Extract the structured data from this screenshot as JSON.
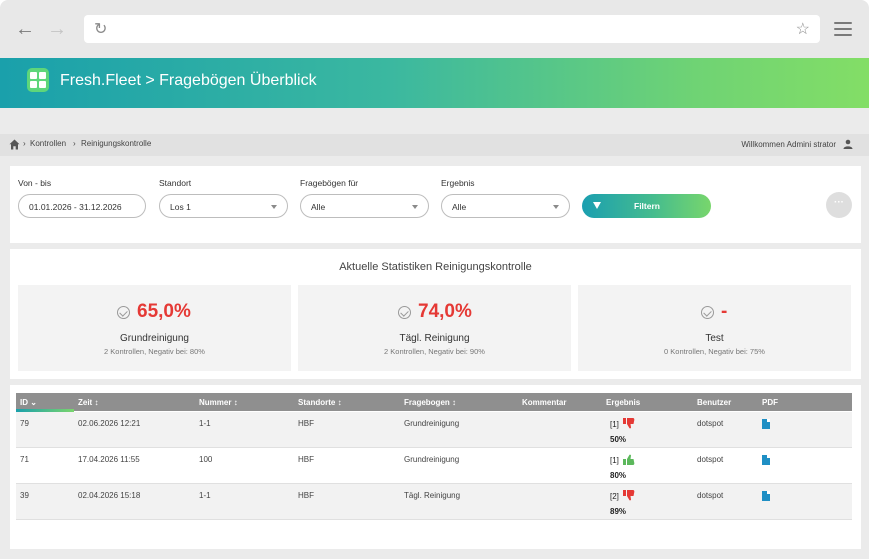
{
  "browser": {
    "back_icon": "arrow-left-icon",
    "forward_icon": "arrow-right-icon",
    "reload_icon": "reload-icon",
    "bookmark_icon": "star-icon",
    "menu_icon": "hamburger-icon"
  },
  "app": {
    "title": "Fresh.Fleet > Fragebögen Überblick",
    "gradient_start": "#1aa0ab",
    "gradient_end": "#83de66"
  },
  "breadcrumb": {
    "items": [
      "Kontrollen",
      "Reinigungskontrolle"
    ],
    "separator": "›",
    "welcome": "Willkommen Admini strator"
  },
  "filters": {
    "date": {
      "label": "Von - bis",
      "value": "01.01.2026 - 31.12.2026"
    },
    "location": {
      "label": "Standort",
      "value": "Los 1"
    },
    "questionnaire": {
      "label": "Fragebögen für",
      "value": "Alle"
    },
    "result": {
      "label": "Ergebnis",
      "value": "Alle"
    },
    "filter_button": "Filtern",
    "more_button": "···"
  },
  "stats": {
    "title": "Aktuelle Statistiken Reinigungskontrolle",
    "cards": [
      {
        "value": "65,0%",
        "name": "Grundreinigung",
        "sub": "2 Kontrollen, Negativ bei: 80%"
      },
      {
        "value": "74,0%",
        "name": "Tägl. Reinigung",
        "sub": "2 Kontrollen, Negativ bei: 90%"
      },
      {
        "value": "-",
        "name": "Test",
        "sub": "0 Kontrollen, Negativ bei: 75%"
      }
    ]
  },
  "table": {
    "columns": [
      "ID",
      "Zeit",
      "Nummer",
      "Standorte",
      "Fragebogen",
      "Kommentar",
      "Ergebnis",
      "Benutzer",
      "PDF"
    ],
    "rows": [
      {
        "id": "79",
        "zeit": "02.06.2026 12:21",
        "nummer": "1-1",
        "standort": "HBF",
        "fragebogen": "Grundreinigung",
        "kommentar": "",
        "ergebnis": "[1]",
        "thumb": "down",
        "prozent": "50%",
        "benutzer": "dotspot"
      },
      {
        "id": "71",
        "zeit": "17.04.2026 11:55",
        "nummer": "100",
        "standort": "HBF",
        "fragebogen": "Grundreinigung",
        "kommentar": "",
        "ergebnis": "[1]",
        "thumb": "up",
        "prozent": "80%",
        "benutzer": "dotspot"
      },
      {
        "id": "39",
        "zeit": "02.04.2026 15:18",
        "nummer": "1-1",
        "standort": "HBF",
        "fragebogen": "Tägl. Reinigung",
        "kommentar": "",
        "ergebnis": "[2]",
        "thumb": "down",
        "prozent": "89%",
        "benutzer": "dotspot"
      }
    ]
  },
  "colors": {
    "negative": "#e53935",
    "positive": "#5cb85c",
    "table_header": "#8f8f8f",
    "pdf_icon": "#1f8fc4"
  }
}
